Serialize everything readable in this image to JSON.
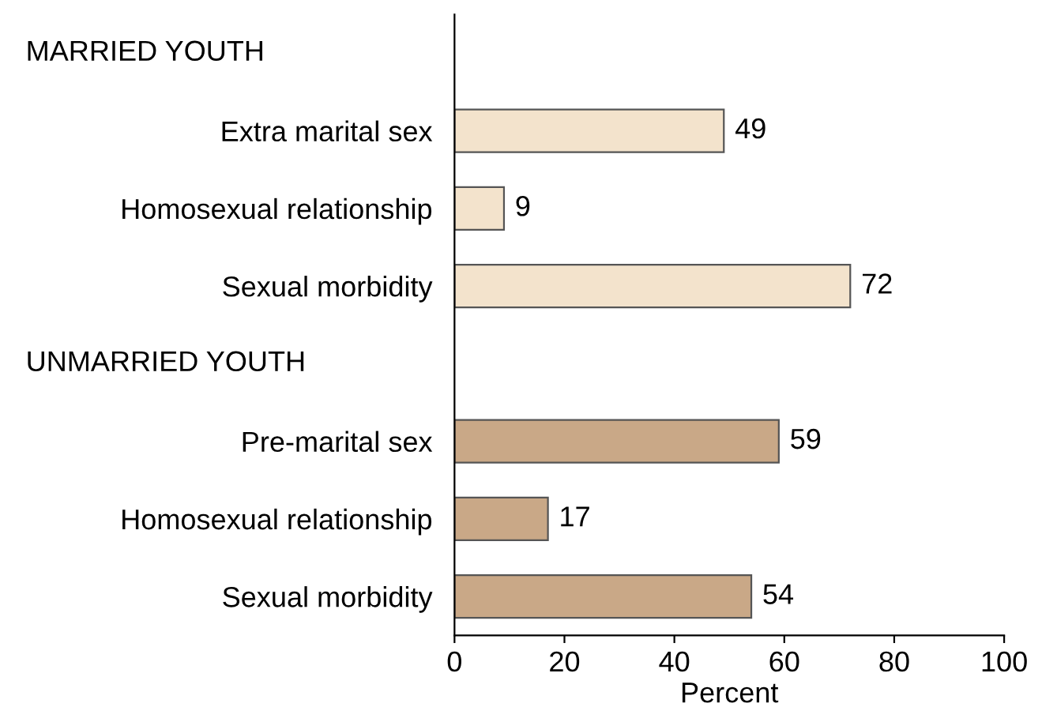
{
  "chart_data": {
    "type": "bar",
    "orientation": "horizontal",
    "annotations": [
      "MARRIED YOUTH",
      "UNMARRIED YOUTH"
    ],
    "categories": [
      null,
      "Extra marital sex",
      "Homosexual relationship",
      "Sexual morbidity",
      null,
      "Pre-marital sex",
      "Homosexual relationship",
      "Sexual morbidity"
    ],
    "values": [
      null,
      49,
      9,
      72,
      null,
      59,
      17,
      54
    ],
    "colors": [
      null,
      "#f3e3cc",
      "#f3e3cc",
      "#f3e3cc",
      null,
      "#c9a887",
      "#c9a887",
      "#c9a887"
    ],
    "data_labels": true,
    "xlabel": "Percent",
    "xlim": [
      0,
      100
    ],
    "xticks": [
      0,
      20,
      40,
      60,
      80,
      100
    ],
    "grid": false,
    "legend": false
  }
}
